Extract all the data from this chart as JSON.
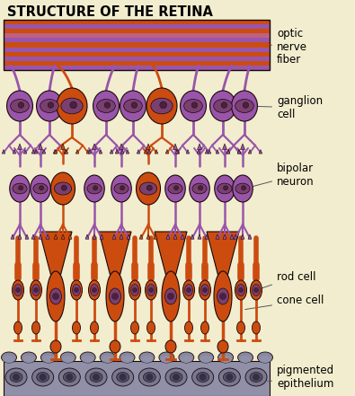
{
  "title": "STRUCTURE OF THE RETINA",
  "background_color": "#f2edce",
  "colors": {
    "orange": "#cc4c10",
    "purple": "#9955aa",
    "dark": "#1a0808",
    "nucleus_dark": "#4a2040",
    "nucleus_fill": "#7a4070",
    "epithelium_bg": "#888098",
    "epithelium_cell": "#6a6080",
    "nerve_bg": "#b06080"
  },
  "labels": {
    "optic_nerve_fiber": "optic\nnerve\nfiber",
    "ganglion_cell": "ganglion\ncell",
    "bipolar_neuron": "bipolar\nneuron",
    "rod_cell": "rod cell",
    "cone_cell": "cone cell",
    "pigmented_epithelium": "pigmented\nepithelium"
  },
  "figsize": [
    3.95,
    4.41
  ],
  "dpi": 100
}
